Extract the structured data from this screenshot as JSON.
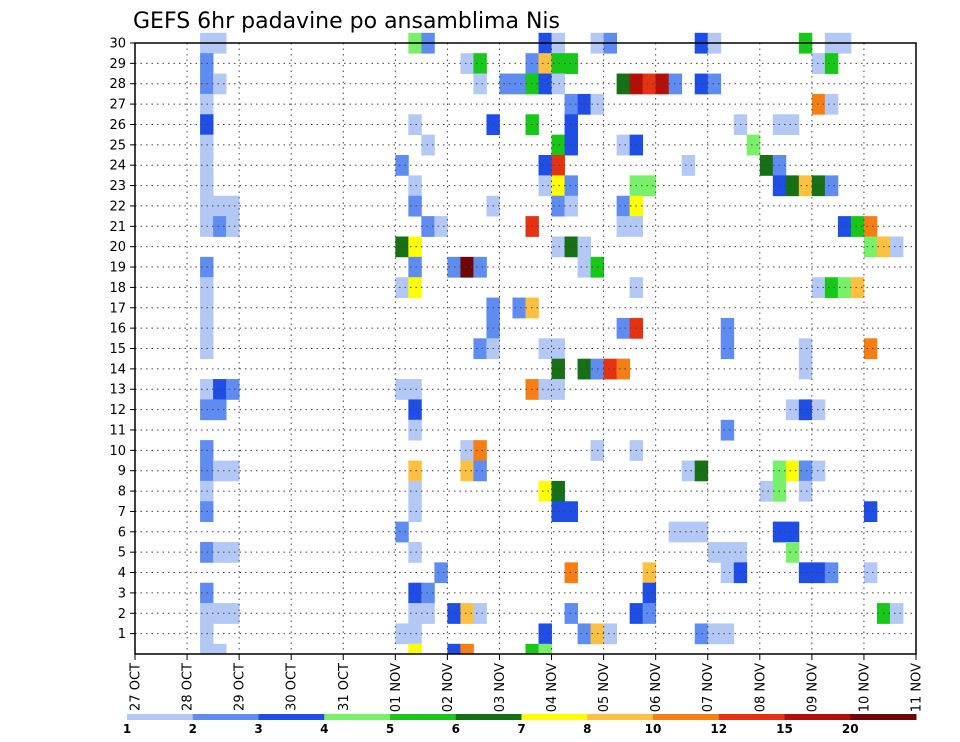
{
  "chart_data": {
    "type": "heatmap",
    "title": "GEFS 6hr padavine po ansamblima Nis",
    "xlabel": "",
    "ylabel": "",
    "x_tick_labels": [
      "27 OCT",
      "28 OCT",
      "29 OCT",
      "30 OCT",
      "31 OCT",
      "01 NOV",
      "02 NOV",
      "03 NOV",
      "04 NOV",
      "05 NOV",
      "06 NOV",
      "07 NOV",
      "08 NOV",
      "09 NOV",
      "10 NOV",
      "11 NOV"
    ],
    "y_tick_labels": [
      "1",
      "2",
      "3",
      "4",
      "5",
      "6",
      "7",
      "8",
      "9",
      "10",
      "11",
      "12",
      "13",
      "14",
      "15",
      "16",
      "17",
      "18",
      "19",
      "20",
      "21",
      "22",
      "23",
      "24",
      "25",
      "26",
      "27",
      "28",
      "29",
      "30"
    ],
    "x_range_days": [
      0,
      15
    ],
    "y_range": [
      0,
      30
    ],
    "time_step_hours": 6,
    "grid": true,
    "colorbar": {
      "levels": [
        1,
        2,
        3,
        4,
        5,
        6,
        7,
        8,
        10,
        12,
        15,
        20
      ],
      "tick_labels": [
        "1",
        "2",
        "3",
        "4",
        "5",
        "6",
        "7",
        "8",
        "10",
        "12",
        "15",
        "20"
      ],
      "colors": [
        "#b3c8f5",
        "#5f8cf0",
        "#1e4ee6",
        "#78f06a",
        "#18c818",
        "#157016",
        "#ffff00",
        "#ffc040",
        "#f57f14",
        "#e63210",
        "#b40e08",
        "#6e0606"
      ]
    },
    "series": [
      {
        "member": 30,
        "cells": [
          [
            1.25,
            1
          ],
          [
            1.5,
            1
          ],
          [
            5.25,
            4
          ],
          [
            5.5,
            2
          ],
          [
            7.75,
            3
          ],
          [
            8,
            1
          ],
          [
            8.75,
            1
          ],
          [
            9,
            2
          ],
          [
            10.75,
            3
          ],
          [
            11,
            1
          ],
          [
            12.75,
            5
          ],
          [
            13.25,
            1
          ],
          [
            13.5,
            1
          ]
        ]
      },
      {
        "member": 29,
        "cells": [
          [
            1.25,
            2
          ],
          [
            6.25,
            1
          ],
          [
            6.5,
            5
          ],
          [
            7.5,
            2
          ],
          [
            7.75,
            8
          ],
          [
            8,
            5
          ],
          [
            8.25,
            5
          ],
          [
            13,
            1
          ],
          [
            13.25,
            5
          ]
        ]
      },
      {
        "member": 28,
        "cells": [
          [
            1.25,
            2
          ],
          [
            1.5,
            1
          ],
          [
            6.5,
            1
          ],
          [
            7,
            2
          ],
          [
            7.25,
            2
          ],
          [
            7.5,
            5
          ],
          [
            7.75,
            3
          ],
          [
            8,
            1
          ],
          [
            9.25,
            6
          ],
          [
            9.5,
            11
          ],
          [
            9.75,
            10
          ],
          [
            10,
            11
          ],
          [
            10.25,
            2
          ],
          [
            10.75,
            3
          ],
          [
            11,
            2
          ]
        ]
      },
      {
        "member": 27,
        "cells": [
          [
            1.25,
            1
          ],
          [
            8.25,
            2
          ],
          [
            8.5,
            3
          ],
          [
            8.75,
            1
          ],
          [
            13,
            9
          ],
          [
            13.25,
            1
          ]
        ]
      },
      {
        "member": 26,
        "cells": [
          [
            1.25,
            3
          ],
          [
            5.25,
            1
          ],
          [
            6.75,
            3
          ],
          [
            7.5,
            5
          ],
          [
            8.25,
            3
          ],
          [
            11.5,
            1
          ],
          [
            12.25,
            1
          ],
          [
            12.5,
            1
          ]
        ]
      },
      {
        "member": 25,
        "cells": [
          [
            1.25,
            1
          ],
          [
            5.5,
            1
          ],
          [
            8,
            5
          ],
          [
            8.25,
            3
          ],
          [
            9.25,
            1
          ],
          [
            9.5,
            3
          ],
          [
            11.75,
            4
          ]
        ]
      },
      {
        "member": 24,
        "cells": [
          [
            1.25,
            1
          ],
          [
            5,
            2
          ],
          [
            7.75,
            3
          ],
          [
            8,
            10
          ],
          [
            10.5,
            1
          ],
          [
            12,
            6
          ],
          [
            12.25,
            2
          ]
        ]
      },
      {
        "member": 23,
        "cells": [
          [
            1.25,
            1
          ],
          [
            5.25,
            1
          ],
          [
            7.75,
            1
          ],
          [
            8,
            7
          ],
          [
            8.25,
            2
          ],
          [
            9.5,
            4
          ],
          [
            9.75,
            4
          ],
          [
            12.25,
            3
          ],
          [
            12.5,
            6
          ],
          [
            12.75,
            8
          ],
          [
            13,
            6
          ],
          [
            13.25,
            2
          ]
        ]
      },
      {
        "member": 22,
        "cells": [
          [
            1.25,
            1
          ],
          [
            1.5,
            1
          ],
          [
            1.75,
            1
          ],
          [
            5.25,
            2
          ],
          [
            6.75,
            1
          ],
          [
            8,
            2
          ],
          [
            8.25,
            1
          ],
          [
            9.25,
            2
          ],
          [
            9.5,
            7
          ]
        ]
      },
      {
        "member": 21,
        "cells": [
          [
            1.25,
            1
          ],
          [
            1.5,
            2
          ],
          [
            1.75,
            1
          ],
          [
            5.5,
            2
          ],
          [
            5.75,
            1
          ],
          [
            7.5,
            10
          ],
          [
            9.25,
            1
          ],
          [
            9.5,
            1
          ],
          [
            13.5,
            3
          ],
          [
            13.75,
            5
          ],
          [
            14,
            9
          ]
        ]
      },
      {
        "member": 20,
        "cells": [
          [
            5,
            6
          ],
          [
            5.25,
            7
          ],
          [
            8,
            1
          ],
          [
            8.25,
            6
          ],
          [
            8.5,
            1
          ],
          [
            14,
            4
          ],
          [
            14.25,
            8
          ],
          [
            14.5,
            1
          ]
        ]
      },
      {
        "member": 19,
        "cells": [
          [
            1.25,
            2
          ],
          [
            5.25,
            2
          ],
          [
            6,
            2
          ],
          [
            6.25,
            12
          ],
          [
            6.5,
            2
          ],
          [
            8.5,
            1
          ],
          [
            8.75,
            5
          ]
        ]
      },
      {
        "member": 18,
        "cells": [
          [
            1.25,
            1
          ],
          [
            5,
            1
          ],
          [
            5.25,
            7
          ],
          [
            9.5,
            1
          ],
          [
            13,
            1
          ],
          [
            13.25,
            5
          ],
          [
            13.5,
            4
          ],
          [
            13.75,
            8
          ]
        ]
      },
      {
        "member": 17,
        "cells": [
          [
            1.25,
            1
          ],
          [
            6.75,
            2
          ],
          [
            7.25,
            2
          ],
          [
            7.5,
            8
          ]
        ]
      },
      {
        "member": 16,
        "cells": [
          [
            1.25,
            1
          ],
          [
            6.75,
            2
          ],
          [
            9.25,
            2
          ],
          [
            9.5,
            10
          ],
          [
            11.25,
            2
          ]
        ]
      },
      {
        "member": 15,
        "cells": [
          [
            1.25,
            1
          ],
          [
            6.5,
            2
          ],
          [
            6.75,
            1
          ],
          [
            7.75,
            1
          ],
          [
            8,
            1
          ],
          [
            11.25,
            2
          ],
          [
            12.75,
            1
          ],
          [
            14,
            9
          ]
        ]
      },
      {
        "member": 14,
        "cells": [
          [
            8,
            6
          ],
          [
            8.5,
            6
          ],
          [
            8.75,
            2
          ],
          [
            9,
            10
          ],
          [
            9.25,
            9
          ],
          [
            12.75,
            1
          ]
        ]
      },
      {
        "member": 13,
        "cells": [
          [
            1.25,
            1
          ],
          [
            1.5,
            3
          ],
          [
            1.75,
            2
          ],
          [
            5,
            1
          ],
          [
            5.25,
            1
          ],
          [
            7.5,
            9
          ],
          [
            7.75,
            1
          ],
          [
            8,
            1
          ]
        ]
      },
      {
        "member": 12,
        "cells": [
          [
            1.25,
            2
          ],
          [
            1.5,
            2
          ],
          [
            5.25,
            3
          ],
          [
            12.5,
            1
          ],
          [
            12.75,
            3
          ],
          [
            13,
            1
          ]
        ]
      },
      {
        "member": 11,
        "cells": [
          [
            5.25,
            1
          ],
          [
            11.25,
            2
          ]
        ]
      },
      {
        "member": 10,
        "cells": [
          [
            1.25,
            2
          ],
          [
            6.25,
            1
          ],
          [
            6.5,
            9
          ],
          [
            8.75,
            1
          ],
          [
            9.5,
            1
          ]
        ]
      },
      {
        "member": 9,
        "cells": [
          [
            1.25,
            2
          ],
          [
            1.5,
            1
          ],
          [
            1.75,
            1
          ],
          [
            5.25,
            8
          ],
          [
            6.25,
            8
          ],
          [
            6.5,
            2
          ],
          [
            10.5,
            1
          ],
          [
            10.75,
            6
          ],
          [
            12.25,
            4
          ],
          [
            12.5,
            7
          ],
          [
            12.75,
            2
          ],
          [
            13,
            1
          ]
        ]
      },
      {
        "member": 8,
        "cells": [
          [
            1.25,
            1
          ],
          [
            5.25,
            1
          ],
          [
            7.75,
            7
          ],
          [
            8,
            6
          ],
          [
            12,
            1
          ],
          [
            12.25,
            4
          ],
          [
            12.75,
            1
          ]
        ]
      },
      {
        "member": 7,
        "cells": [
          [
            1.25,
            2
          ],
          [
            5.25,
            1
          ],
          [
            8,
            3
          ],
          [
            8.25,
            3
          ],
          [
            14,
            3
          ]
        ]
      },
      {
        "member": 6,
        "cells": [
          [
            5,
            2
          ],
          [
            10.25,
            1
          ],
          [
            10.5,
            1
          ],
          [
            10.75,
            1
          ],
          [
            12.25,
            3
          ],
          [
            12.5,
            3
          ]
        ]
      },
      {
        "member": 5,
        "cells": [
          [
            1.25,
            2
          ],
          [
            1.5,
            1
          ],
          [
            1.75,
            1
          ],
          [
            5.25,
            1
          ],
          [
            11,
            1
          ],
          [
            11.25,
            1
          ],
          [
            11.5,
            1
          ],
          [
            12.5,
            4
          ]
        ]
      },
      {
        "member": 4,
        "cells": [
          [
            5.75,
            2
          ],
          [
            8.25,
            9
          ],
          [
            9.75,
            8
          ],
          [
            11.25,
            1
          ],
          [
            11.5,
            3
          ],
          [
            12.75,
            3
          ],
          [
            13,
            3
          ],
          [
            13.25,
            2
          ],
          [
            14,
            1
          ]
        ]
      },
      {
        "member": 3,
        "cells": [
          [
            1.25,
            2
          ],
          [
            5.25,
            3
          ],
          [
            5.5,
            2
          ],
          [
            9.75,
            3
          ]
        ]
      },
      {
        "member": 2,
        "cells": [
          [
            1.25,
            1
          ],
          [
            1.5,
            1
          ],
          [
            1.75,
            1
          ],
          [
            5.25,
            1
          ],
          [
            5.5,
            1
          ],
          [
            6,
            3
          ],
          [
            6.25,
            8
          ],
          [
            6.5,
            1
          ],
          [
            8.25,
            2
          ],
          [
            9.5,
            3
          ],
          [
            9.75,
            2
          ],
          [
            14.25,
            5
          ],
          [
            14.5,
            1
          ]
        ]
      },
      {
        "member": 1,
        "cells": [
          [
            1.25,
            1
          ],
          [
            5,
            1
          ],
          [
            5.25,
            1
          ],
          [
            7.75,
            3
          ],
          [
            8.5,
            2
          ],
          [
            8.75,
            8
          ],
          [
            9,
            1
          ],
          [
            10.75,
            2
          ],
          [
            11,
            1
          ],
          [
            11.25,
            1
          ]
        ]
      },
      {
        "member": 0,
        "cells": [
          [
            1.25,
            1
          ],
          [
            1.5,
            1
          ],
          [
            5.25,
            7
          ],
          [
            6,
            3
          ],
          [
            6.25,
            9
          ],
          [
            7.5,
            5
          ],
          [
            7.75,
            4
          ]
        ]
      }
    ]
  }
}
